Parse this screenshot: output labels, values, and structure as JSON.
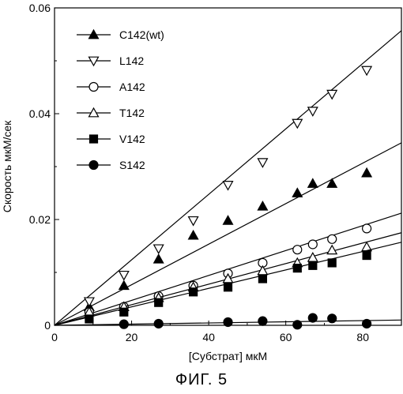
{
  "chart_data": {
    "type": "scatter",
    "xlabel": "[Субстрат] мкМ",
    "ylabel": "Скорость мкМ/сек",
    "xlim": [
      0,
      90
    ],
    "ylim": [
      0,
      0.06
    ],
    "x_ticks": [
      0,
      20,
      40,
      60,
      80
    ],
    "y_ticks": [
      0,
      0.02,
      0.04,
      0.06
    ],
    "x_tick_labels": [
      "0",
      "20",
      "40",
      "60",
      "80"
    ],
    "y_tick_labels": [
      "0",
      "0.02",
      "0.04",
      "0.06"
    ],
    "grid": false,
    "legend_position": "top-left",
    "series": [
      {
        "name": "C142(wt)",
        "marker": "triangle-filled",
        "x": [
          9,
          18,
          27,
          36,
          45,
          54,
          63,
          67,
          72,
          81
        ],
        "y": [
          0.0035,
          0.0075,
          0.0125,
          0.017,
          0.0198,
          0.0225,
          0.025,
          0.0268,
          0.0268,
          0.0288
        ],
        "fit": [
          0.0,
          0.0345
        ]
      },
      {
        "name": "L142",
        "marker": "triangle-down-open",
        "x": [
          9,
          18,
          27,
          36,
          45,
          54,
          63,
          67,
          72,
          81
        ],
        "y": [
          0.0045,
          0.0095,
          0.0145,
          0.0198,
          0.0265,
          0.0308,
          0.0382,
          0.0405,
          0.0437,
          0.0482
        ],
        "fit": [
          0.0,
          0.0557
        ]
      },
      {
        "name": "A142",
        "marker": "circle-open",
        "x": [
          9,
          18,
          27,
          36,
          45,
          54,
          63,
          67,
          72,
          81
        ],
        "y": [
          0.0025,
          0.0035,
          0.0055,
          0.0075,
          0.0098,
          0.0118,
          0.0143,
          0.0153,
          0.0163,
          0.0183
        ],
        "fit": [
          0.0,
          0.0212
        ]
      },
      {
        "name": "T142",
        "marker": "triangle-open",
        "x": [
          9,
          18,
          27,
          36,
          45,
          54,
          63,
          67,
          72,
          81
        ],
        "y": [
          0.0025,
          0.0035,
          0.0052,
          0.0072,
          0.0088,
          0.0103,
          0.0118,
          0.0128,
          0.0142,
          0.0148
        ],
        "fit": [
          0.0,
          0.0175
        ]
      },
      {
        "name": "V142",
        "marker": "square-filled",
        "x": [
          9,
          18,
          27,
          36,
          45,
          54,
          63,
          67,
          72,
          81
        ],
        "y": [
          0.0012,
          0.0025,
          0.0043,
          0.0063,
          0.0072,
          0.0088,
          0.0108,
          0.0113,
          0.0118,
          0.0132
        ],
        "fit": [
          0.0,
          0.0157
        ]
      },
      {
        "name": "S142",
        "marker": "circle-filled",
        "x": [
          18,
          27,
          45,
          54,
          63,
          67,
          72,
          81
        ],
        "y": [
          0.0002,
          0.0003,
          0.0006,
          0.0008,
          0.0001,
          0.0014,
          0.0013,
          0.0003
        ],
        "fit": [
          0.0,
          0.001
        ]
      }
    ]
  },
  "caption": "ФИГ. 5"
}
